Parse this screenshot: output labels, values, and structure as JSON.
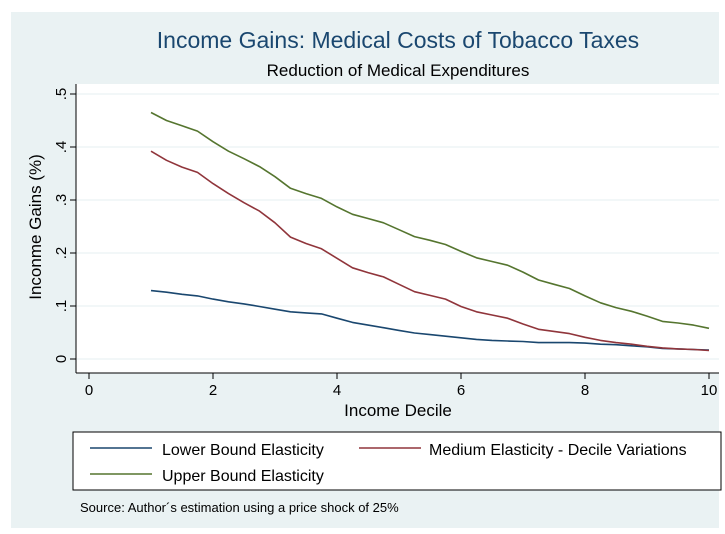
{
  "chart_data": {
    "type": "line",
    "title": "Income Gains: Medical Costs of Tobacco Taxes",
    "subtitle": "Reduction of Medical Expenditures",
    "xlabel": "Income Decile",
    "ylabel": "Inconme Gains (%)",
    "xlim": [
      0,
      10
    ],
    "ylim": [
      0,
      0.5
    ],
    "xticks": [
      0,
      2,
      4,
      6,
      8,
      10
    ],
    "xtick_labels": [
      "0",
      "2",
      "4",
      "6",
      "8",
      "10"
    ],
    "yticks": [
      0,
      0.1,
      0.2,
      0.3,
      0.4,
      0.5
    ],
    "ytick_labels": [
      "0",
      ".1",
      ".2",
      ".3",
      ".4",
      ".5"
    ],
    "grid": "horizontal",
    "legend_position": "bottom",
    "note": "Source: Author´s estimation using a price shock of 25%",
    "series": [
      {
        "name": "Lower Bound Elasticity",
        "color": "#1a476f",
        "x": [
          1,
          1.25,
          1.5,
          1.75,
          2,
          2.25,
          2.5,
          2.75,
          3,
          3.25,
          3.5,
          3.75,
          4,
          4.25,
          4.5,
          4.75,
          5,
          5.25,
          5.5,
          5.75,
          6,
          6.25,
          6.5,
          6.75,
          7,
          7.25,
          7.5,
          7.75,
          8,
          8.25,
          8.5,
          8.75,
          9,
          9.25,
          9.5,
          9.75,
          10
        ],
        "y": [
          0.129,
          0.126,
          0.122,
          0.119,
          0.113,
          0.108,
          0.104,
          0.099,
          0.094,
          0.089,
          0.087,
          0.085,
          0.077,
          0.069,
          0.064,
          0.059,
          0.054,
          0.049,
          0.046,
          0.043,
          0.04,
          0.037,
          0.035,
          0.034,
          0.033,
          0.031,
          0.031,
          0.031,
          0.03,
          0.028,
          0.027,
          0.025,
          0.023,
          0.02,
          0.019,
          0.018,
          0.017
        ]
      },
      {
        "name": "Medium Elasticity - Decile Variations",
        "color": "#90353b",
        "x": [
          1,
          1.25,
          1.5,
          1.75,
          2,
          2.25,
          2.5,
          2.75,
          3,
          3.25,
          3.5,
          3.75,
          4,
          4.25,
          4.5,
          4.75,
          5,
          5.25,
          5.5,
          5.75,
          6,
          6.25,
          6.5,
          6.75,
          7,
          7.25,
          7.5,
          7.75,
          8,
          8.25,
          8.5,
          8.75,
          9,
          9.25,
          9.5,
          9.75,
          10
        ],
        "y": [
          0.392,
          0.375,
          0.362,
          0.352,
          0.331,
          0.312,
          0.295,
          0.279,
          0.257,
          0.23,
          0.218,
          0.208,
          0.19,
          0.172,
          0.163,
          0.155,
          0.141,
          0.127,
          0.12,
          0.113,
          0.099,
          0.089,
          0.083,
          0.077,
          0.066,
          0.056,
          0.052,
          0.048,
          0.041,
          0.035,
          0.031,
          0.028,
          0.024,
          0.021,
          0.019,
          0.018,
          0.016
        ]
      },
      {
        "name": "Upper Bound Elasticity",
        "color": "#55752f",
        "x": [
          1,
          1.25,
          1.5,
          1.75,
          2,
          2.25,
          2.5,
          2.75,
          3,
          3.25,
          3.5,
          3.75,
          4,
          4.25,
          4.5,
          4.75,
          5,
          5.25,
          5.5,
          5.75,
          6,
          6.25,
          6.5,
          6.75,
          7,
          7.25,
          7.5,
          7.75,
          8,
          8.25,
          8.5,
          8.75,
          9,
          9.25,
          9.5,
          9.75,
          10
        ],
        "y": [
          0.465,
          0.45,
          0.44,
          0.43,
          0.41,
          0.392,
          0.378,
          0.363,
          0.344,
          0.322,
          0.312,
          0.303,
          0.287,
          0.273,
          0.265,
          0.257,
          0.244,
          0.231,
          0.224,
          0.216,
          0.203,
          0.191,
          0.184,
          0.177,
          0.164,
          0.149,
          0.141,
          0.133,
          0.119,
          0.106,
          0.097,
          0.09,
          0.081,
          0.071,
          0.068,
          0.064,
          0.058
        ]
      }
    ]
  }
}
